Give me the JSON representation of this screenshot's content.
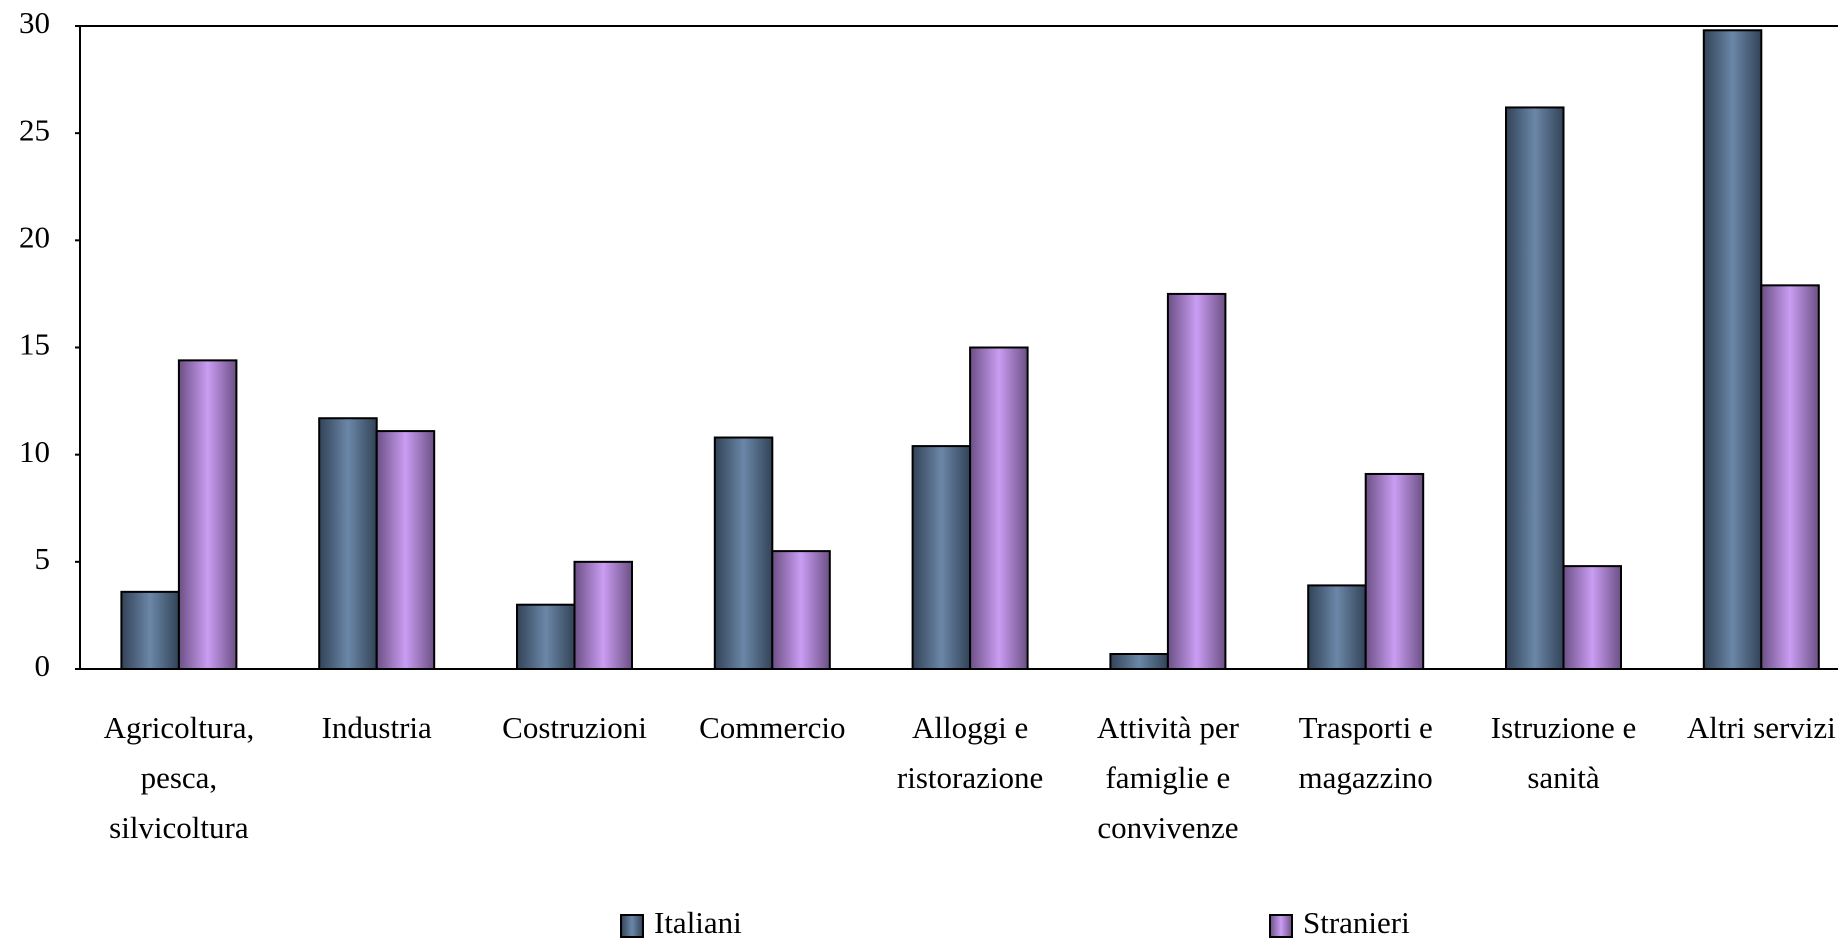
{
  "chart_data": {
    "type": "bar",
    "categories": [
      "Agricoltura, pesca, silvicoltura",
      "Industria",
      "Costruzioni",
      "Commercio",
      "Alloggi e ristorazione",
      "Attività per famiglie e convivenze",
      "Trasporti e magazzino",
      "Istruzione e sanità",
      "Altri servizi"
    ],
    "series": [
      {
        "name": "Italiani",
        "color": "#5b7a9e",
        "values": [
          3.6,
          11.7,
          3.0,
          10.8,
          10.4,
          0.7,
          3.9,
          26.2,
          29.8
        ]
      },
      {
        "name": "Stranieri",
        "color": "#c492f2",
        "values": [
          14.4,
          11.1,
          5.0,
          5.5,
          15.0,
          17.5,
          9.1,
          4.8,
          17.9
        ]
      }
    ],
    "ylim": [
      0,
      30
    ],
    "yticks": [
      0,
      5,
      10,
      15,
      20,
      25,
      30
    ],
    "grid": false,
    "legend": "bottom"
  }
}
